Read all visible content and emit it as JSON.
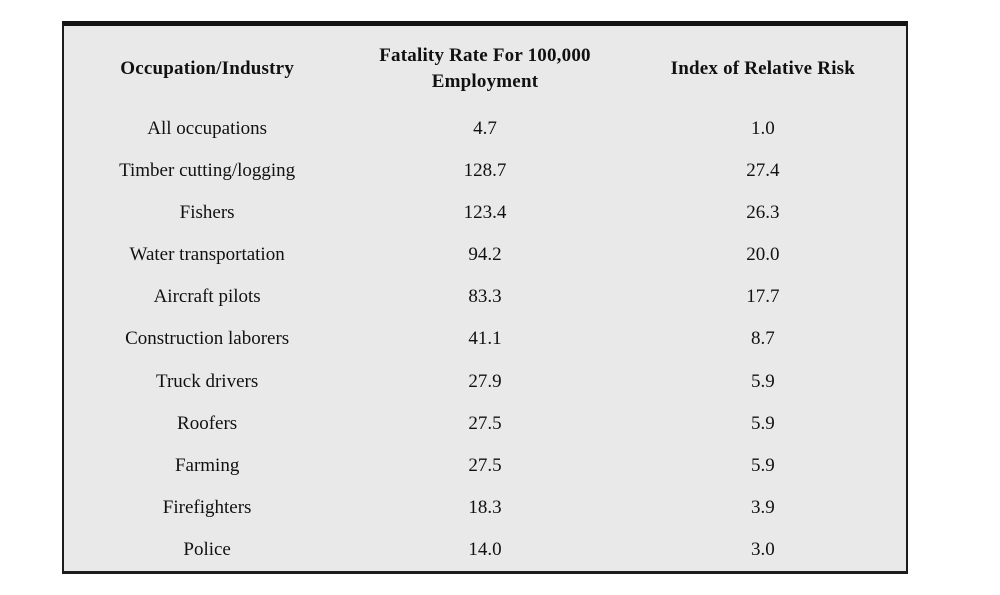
{
  "table": {
    "headers": {
      "occupation": "Occupation/Industry",
      "fatality": "Fatality Rate For 100,000 Employment",
      "risk": "Index of Relative Risk"
    },
    "rows": [
      {
        "occupation": "All occupations",
        "fatality": "4.7",
        "risk": "1.0"
      },
      {
        "occupation": "Timber cutting/logging",
        "fatality": "128.7",
        "risk": "27.4"
      },
      {
        "occupation": "Fishers",
        "fatality": "123.4",
        "risk": "26.3"
      },
      {
        "occupation": "Water transportation",
        "fatality": "94.2",
        "risk": "20.0"
      },
      {
        "occupation": "Aircraft pilots",
        "fatality": "83.3",
        "risk": "17.7"
      },
      {
        "occupation": "Construction laborers",
        "fatality": "41.1",
        "risk": "8.7"
      },
      {
        "occupation": "Truck drivers",
        "fatality": "27.9",
        "risk": "5.9"
      },
      {
        "occupation": "Roofers",
        "fatality": "27.5",
        "risk": "5.9"
      },
      {
        "occupation": "Farming",
        "fatality": "27.5",
        "risk": "5.9"
      },
      {
        "occupation": "Firefighters",
        "fatality": "18.3",
        "risk": "3.9"
      },
      {
        "occupation": "Police",
        "fatality": "14.0",
        "risk": "3.0"
      }
    ]
  },
  "colors": {
    "table_background": "#e9e9e9",
    "border": "#1c1c1c",
    "page_background": "#ffffff",
    "text": "#111111"
  },
  "chart_data": {
    "type": "table",
    "title": "",
    "columns": [
      "Occupation/Industry",
      "Fatality Rate For 100,000 Employment",
      "Index of Relative Risk"
    ],
    "rows": [
      [
        "All occupations",
        4.7,
        1.0
      ],
      [
        "Timber cutting/logging",
        128.7,
        27.4
      ],
      [
        "Fishers",
        123.4,
        26.3
      ],
      [
        "Water transportation",
        94.2,
        20.0
      ],
      [
        "Aircraft pilots",
        83.3,
        17.7
      ],
      [
        "Construction laborers",
        41.1,
        8.7
      ],
      [
        "Truck drivers",
        27.9,
        5.9
      ],
      [
        "Roofers",
        27.5,
        5.9
      ],
      [
        "Farming",
        27.5,
        5.9
      ],
      [
        "Firefighters",
        18.3,
        3.9
      ],
      [
        "Police",
        14.0,
        3.0
      ]
    ]
  }
}
